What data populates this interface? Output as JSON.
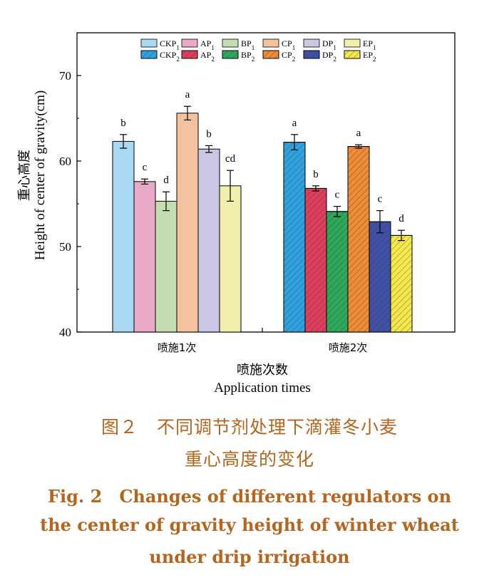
{
  "chart_data": {
    "type": "bar",
    "ylabel_zh": "重心高度",
    "ylabel_en": "Height of center of gravity(cm)",
    "xlabel_zh": "喷施次数",
    "xlabel_en": "Application times",
    "ylim": [
      40,
      75
    ],
    "yticks": [
      40,
      50,
      60,
      70
    ],
    "categories": [
      "喷施1次",
      "喷施2次"
    ],
    "groups": [
      {
        "category": "喷施1次",
        "series": [
          {
            "name": "CKP",
            "sub": "1",
            "value": 62.3,
            "error": 0.8,
            "letter": "b",
            "color": "#a9d8f2",
            "hatched": false
          },
          {
            "name": "AP",
            "sub": "1",
            "value": 57.6,
            "error": 0.3,
            "letter": "c",
            "color": "#eaa9c6",
            "hatched": false
          },
          {
            "name": "BP",
            "sub": "1",
            "value": 55.3,
            "error": 1.1,
            "letter": "d",
            "color": "#c3ddb0",
            "hatched": false
          },
          {
            "name": "CP",
            "sub": "1",
            "value": 65.6,
            "error": 0.8,
            "letter": "a",
            "color": "#f3c3a0",
            "hatched": false
          },
          {
            "name": "DP",
            "sub": "1",
            "value": 61.4,
            "error": 0.4,
            "letter": "b",
            "color": "#c9c7e3",
            "hatched": false
          },
          {
            "name": "EP",
            "sub": "1",
            "value": 57.1,
            "error": 1.8,
            "letter": "cd",
            "color": "#f2eeab",
            "hatched": false
          }
        ]
      },
      {
        "category": "喷施2次",
        "series": [
          {
            "name": "CKP",
            "sub": "2",
            "value": 62.2,
            "error": 0.9,
            "letter": "a",
            "color": "#2ea3df",
            "hatched": true
          },
          {
            "name": "AP",
            "sub": "2",
            "value": 56.8,
            "error": 0.3,
            "letter": "b",
            "color": "#df3e5c",
            "hatched": true
          },
          {
            "name": "BP",
            "sub": "2",
            "value": 54.1,
            "error": 0.6,
            "letter": "c",
            "color": "#2ea85a",
            "hatched": true
          },
          {
            "name": "CP",
            "sub": "2",
            "value": 61.7,
            "error": 0.2,
            "letter": "a",
            "color": "#f08c35",
            "hatched": true
          },
          {
            "name": "DP",
            "sub": "2",
            "value": 52.9,
            "error": 1.3,
            "letter": "c",
            "color": "#4050a6",
            "hatched": true
          },
          {
            "name": "EP",
            "sub": "2",
            "value": 51.3,
            "error": 0.6,
            "letter": "d",
            "color": "#f4e84a",
            "hatched": true
          }
        ]
      }
    ]
  },
  "caption": {
    "zh_line1": "图２　不同调节剂处理下滴灌冬小麦",
    "zh_line2": "重心高度的变化",
    "en_line1": "Fig. 2　Changes of different regulators on",
    "en_line2": "the center of gravity height of winter wheat",
    "en_line3": "under drip irrigation"
  }
}
